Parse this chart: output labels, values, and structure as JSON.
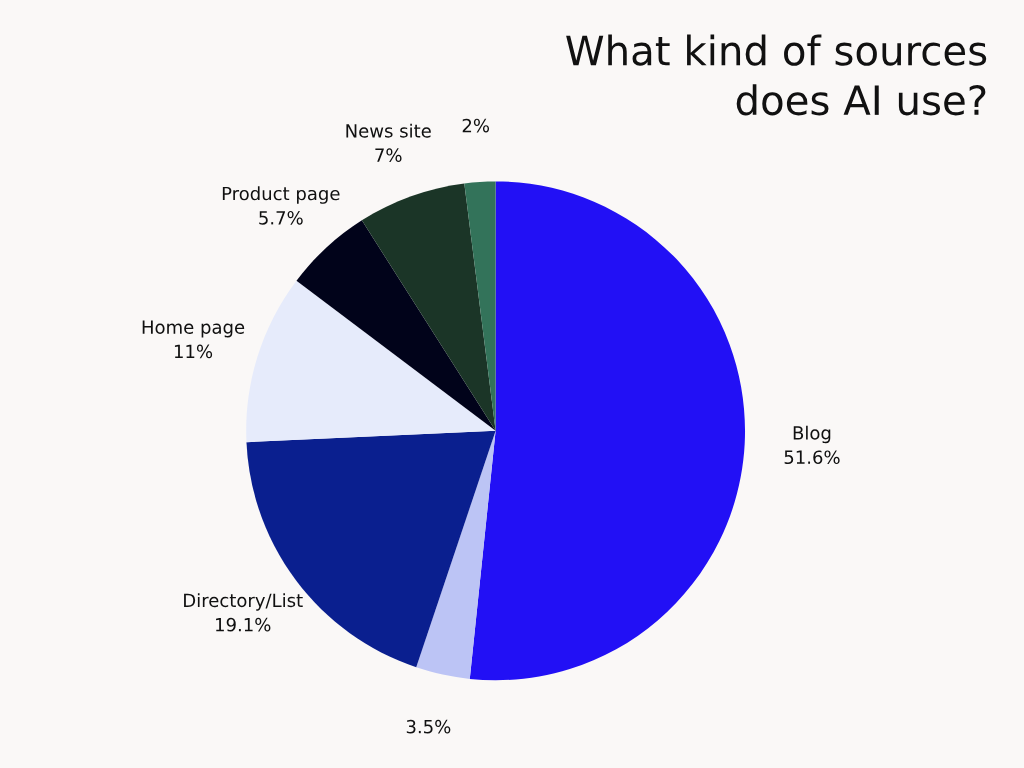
{
  "chart_data": {
    "type": "pie",
    "title": "What kind of sources\ndoes AI use?",
    "categories": [
      "Blog",
      null,
      "Directory/List",
      "Home page",
      "Product page",
      "News site",
      null
    ],
    "values": [
      51.6,
      3.5,
      19.1,
      11,
      5.7,
      7,
      2
    ],
    "colors": [
      "#2210f5",
      "#bcc4f5",
      "#0a1f8f",
      "#e6ebfb",
      "#01031a",
      "#1b3527",
      "#33735a"
    ],
    "value_labels": [
      "51.6%",
      "3.5%",
      "19.1%",
      "11%",
      "5.7%",
      "7%",
      "2%"
    ],
    "legend": false
  }
}
